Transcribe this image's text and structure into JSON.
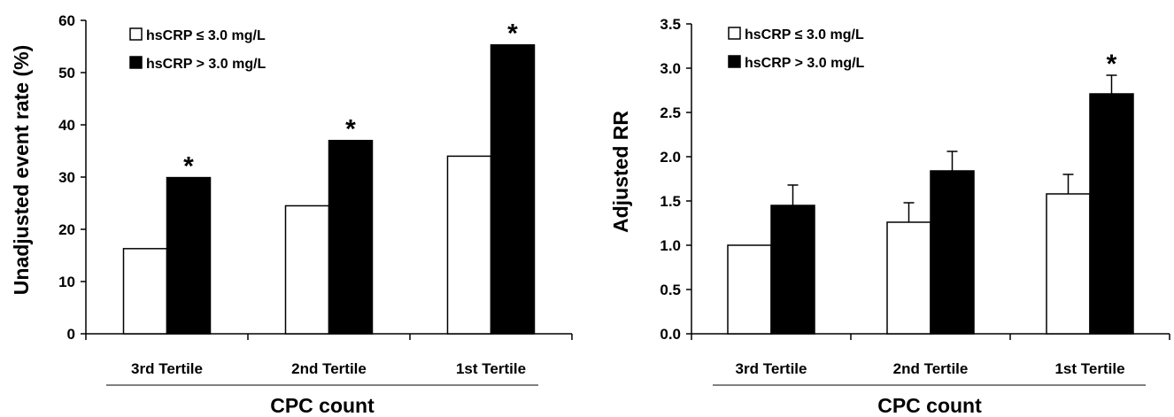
{
  "chart_data": [
    {
      "type": "bar",
      "categories": [
        "3rd Tertile",
        "2nd Tertile",
        "1st Tertile"
      ],
      "series": [
        {
          "name": "hsCRP ≤ 3.0 mg/L",
          "values": [
            16.3,
            24.5,
            34.0
          ],
          "color": "#ffffff"
        },
        {
          "name": "hsCRP > 3.0 mg/L",
          "values": [
            29.9,
            37.0,
            55.3
          ],
          "color": "#000000"
        }
      ],
      "ylabel": "Unadjusted event rate (%)",
      "xlabel": "CPC count",
      "ylim": [
        0,
        60
      ],
      "yticks": [
        "0",
        "10",
        "20",
        "30",
        "40",
        "50",
        "60"
      ],
      "significance": [
        [
          "",
          "*"
        ],
        [
          "",
          "*"
        ],
        [
          "",
          "*"
        ]
      ],
      "grid": false,
      "legend": "top-left"
    },
    {
      "type": "bar",
      "categories": [
        "3rd Tertile",
        "2nd Tertile",
        "1st Tertile"
      ],
      "series": [
        {
          "name": "hsCRP ≤ 3.0 mg/L",
          "values": [
            1.0,
            1.26,
            1.58
          ],
          "errors": [
            0,
            0.22,
            0.22
          ],
          "color": "#ffffff"
        },
        {
          "name": "hsCRP > 3.0 mg/L",
          "values": [
            1.45,
            1.84,
            2.71
          ],
          "errors": [
            0.23,
            0.22,
            0.21
          ],
          "color": "#000000"
        }
      ],
      "ylabel": "Adjusted RR",
      "xlabel": "CPC count",
      "ylim": [
        0,
        3.5
      ],
      "yticks": [
        "0.0",
        "0.5",
        "1.0",
        "1.5",
        "2.0",
        "2.5",
        "3.0",
        "3.5"
      ],
      "significance": [
        [
          "",
          ""
        ],
        [
          "",
          ""
        ],
        [
          "",
          "*"
        ]
      ],
      "grid": false,
      "legend": "top-left"
    }
  ]
}
